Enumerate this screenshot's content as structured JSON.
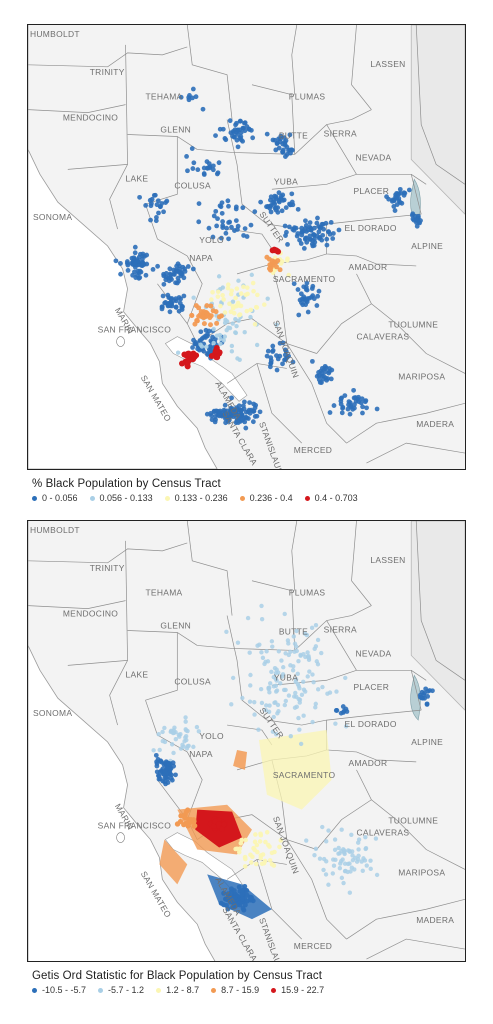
{
  "maps": [
    {
      "id": "pct",
      "legend_title": "% Black Population by Census Tract",
      "classes": [
        {
          "label": "0 - 0.056",
          "color": "#2c6fb9"
        },
        {
          "label": "0.056 - 0.133",
          "color": "#a9cfe6"
        },
        {
          "label": "0.133 - 0.236",
          "color": "#fbf6b3"
        },
        {
          "label": "0.236 - 0.4",
          "color": "#f29a53"
        },
        {
          "label": "0.4 - 0.703",
          "color": "#d4171c"
        }
      ]
    },
    {
      "id": "getis",
      "legend_title": "Getis Ord Statistic for Black Population by Census Tract",
      "classes": [
        {
          "label": "-10.5 - -5.7",
          "color": "#2c6fb9"
        },
        {
          "label": "-5.7 - 1.2",
          "color": "#a9cfe6"
        },
        {
          "label": "1.2 - 8.7",
          "color": "#fbf6b3"
        },
        {
          "label": "8.7 - 15.9",
          "color": "#f29a53"
        },
        {
          "label": "15.9 - 22.7",
          "color": "#d4171c"
        }
      ]
    }
  ],
  "county_labels": [
    "HUMBOLDT",
    "TRINITY",
    "TEHAMA",
    "LASSEN",
    "PLUMAS",
    "MENDOCINO",
    "GLENN",
    "BUTTE",
    "SIERRA",
    "NEVADA",
    "YUBA",
    "LAKE",
    "COLUSA",
    "PLACER",
    "SUTTER",
    "EL DORADO",
    "SONOMA",
    "YOLO",
    "ALPINE",
    "NAPA",
    "SACRAMENTO",
    "AMADOR",
    "MARIN",
    "SAN JOAQUIN",
    "TUOLUMNE",
    "CALAVERAS",
    "SAN FRANCISCO",
    "ALAMEDA",
    "MARIPOSA",
    "SAN MATEO",
    "STANISLAUS",
    "SANTA CLARA",
    "MADERA",
    "MERCED"
  ]
}
